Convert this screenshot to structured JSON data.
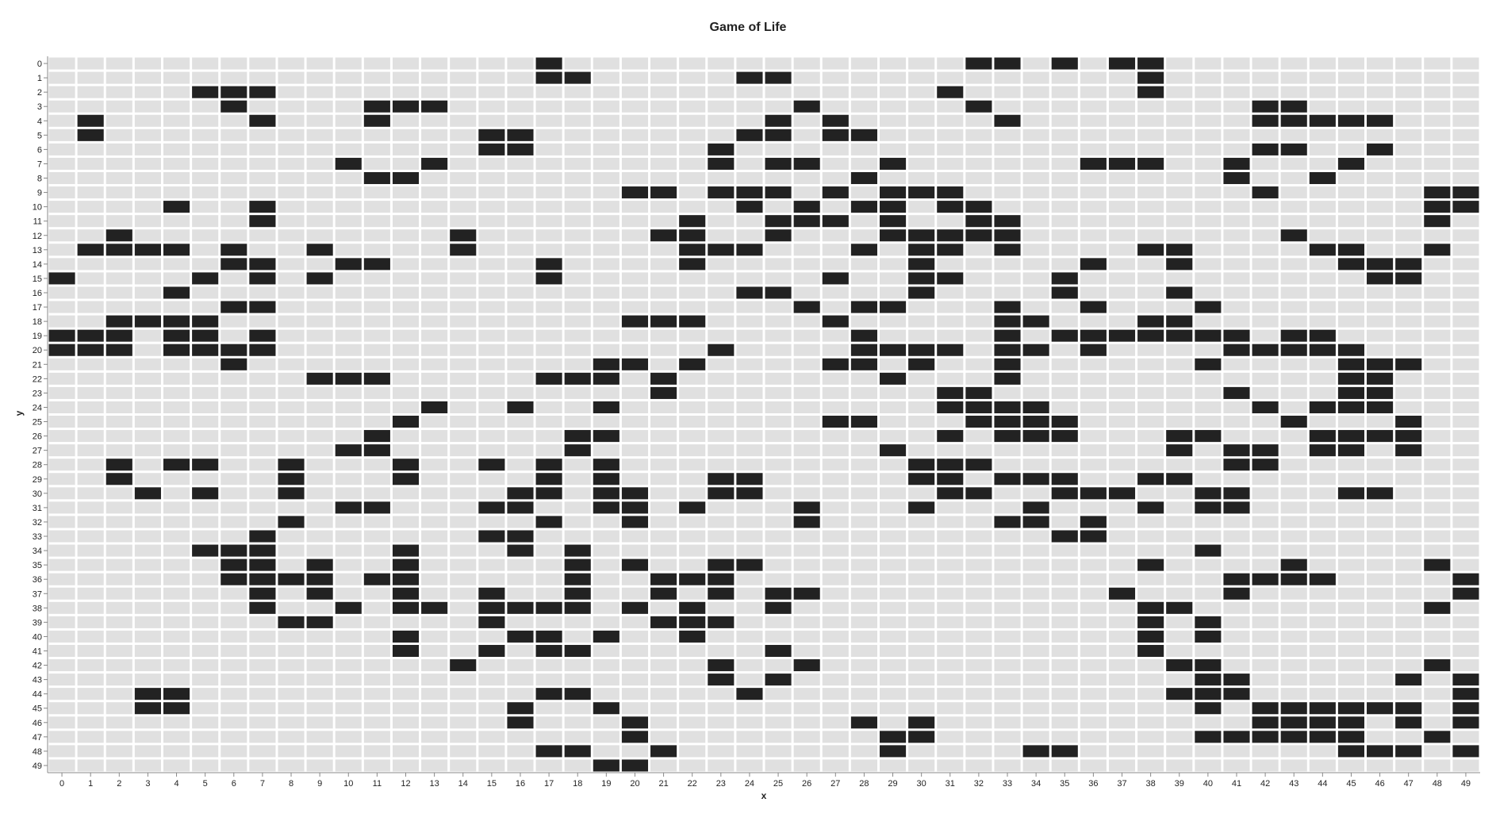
{
  "chart_data": {
    "type": "heatmap",
    "title": "Game of Life",
    "xlabel": "x",
    "ylabel": "y",
    "x_categories": [
      0,
      1,
      2,
      3,
      4,
      5,
      6,
      7,
      8,
      9,
      10,
      11,
      12,
      13,
      14,
      15,
      16,
      17,
      18,
      19,
      20,
      21,
      22,
      23,
      24,
      25,
      26,
      27,
      28,
      29,
      30,
      31,
      32,
      33,
      34,
      35,
      36,
      37,
      38,
      39,
      40,
      41,
      42,
      43,
      44,
      45,
      46,
      47,
      48,
      49
    ],
    "y_categories": [
      0,
      1,
      2,
      3,
      4,
      5,
      6,
      7,
      8,
      9,
      10,
      11,
      12,
      13,
      14,
      15,
      16,
      17,
      18,
      19,
      20,
      21,
      22,
      23,
      24,
      25,
      26,
      27,
      28,
      29,
      30,
      31,
      32,
      33,
      34,
      35,
      36,
      37,
      38,
      39,
      40,
      41,
      42,
      43,
      44,
      45,
      46,
      47,
      48,
      49
    ],
    "colors": {
      "alive": "#222222",
      "dead": "#e0e0e0"
    },
    "grid": false,
    "legend": "none",
    "alive_cells": {
      "0": [
        17,
        32,
        33,
        35,
        37,
        38
      ],
      "1": [
        17,
        18,
        24,
        25,
        38
      ],
      "2": [
        5,
        6,
        7,
        31,
        38
      ],
      "3": [
        6,
        11,
        12,
        13,
        26,
        32,
        42,
        43
      ],
      "4": [
        1,
        7,
        11,
        25,
        27,
        33,
        42,
        43,
        44,
        45,
        46
      ],
      "5": [
        1,
        15,
        16,
        24,
        25,
        27,
        28
      ],
      "6": [
        15,
        16,
        23,
        42,
        43,
        46
      ],
      "7": [
        10,
        13,
        23,
        25,
        26,
        29,
        36,
        37,
        38,
        41,
        45
      ],
      "8": [
        11,
        12,
        28,
        41,
        44
      ],
      "9": [
        20,
        21,
        23,
        24,
        25,
        27,
        29,
        30,
        31,
        42,
        48,
        49
      ],
      "10": [
        4,
        7,
        24,
        26,
        28,
        29,
        31,
        32,
        48,
        49
      ],
      "11": [
        7,
        22,
        25,
        26,
        27,
        29,
        32,
        33,
        48
      ],
      "12": [
        2,
        14,
        21,
        22,
        25,
        29,
        30,
        31,
        32,
        33,
        43
      ],
      "13": [
        1,
        2,
        3,
        4,
        6,
        9,
        14,
        22,
        23,
        24,
        28,
        30,
        31,
        33,
        38,
        39,
        44,
        45,
        48
      ],
      "14": [
        6,
        7,
        10,
        11,
        17,
        22,
        30,
        36,
        39,
        45,
        46,
        47
      ],
      "15": [
        0,
        5,
        7,
        9,
        17,
        27,
        30,
        31,
        35,
        46,
        47
      ],
      "16": [
        4,
        24,
        25,
        30,
        35,
        39
      ],
      "17": [
        6,
        7,
        26,
        28,
        29,
        33,
        36,
        40
      ],
      "18": [
        2,
        3,
        4,
        5,
        20,
        21,
        22,
        27,
        33,
        34,
        38,
        39
      ],
      "19": [
        0,
        1,
        2,
        4,
        5,
        7,
        28,
        33,
        35,
        36,
        37,
        38,
        39,
        40,
        41,
        43,
        44
      ],
      "20": [
        0,
        1,
        2,
        4,
        5,
        6,
        7,
        23,
        28,
        29,
        30,
        31,
        33,
        34,
        36,
        41,
        42,
        43,
        44,
        45
      ],
      "21": [
        6,
        19,
        20,
        22,
        27,
        28,
        30,
        33,
        40,
        45,
        46,
        47
      ],
      "22": [
        9,
        10,
        11,
        17,
        18,
        19,
        21,
        29,
        33,
        45,
        46
      ],
      "23": [
        21,
        31,
        32,
        41,
        45,
        46
      ],
      "24": [
        13,
        16,
        19,
        31,
        32,
        33,
        34,
        42,
        44,
        45,
        46
      ],
      "25": [
        12,
        27,
        28,
        32,
        33,
        34,
        35,
        43,
        47
      ],
      "26": [
        11,
        18,
        19,
        31,
        33,
        34,
        35,
        39,
        40,
        44,
        45,
        46,
        47
      ],
      "27": [
        10,
        11,
        18,
        29,
        39,
        41,
        42,
        44,
        45,
        47
      ],
      "28": [
        2,
        4,
        5,
        8,
        12,
        15,
        17,
        19,
        30,
        31,
        32,
        41,
        42
      ],
      "29": [
        2,
        8,
        12,
        17,
        19,
        23,
        24,
        30,
        31,
        33,
        34,
        35,
        38,
        39
      ],
      "30": [
        3,
        5,
        8,
        16,
        17,
        19,
        20,
        23,
        24,
        31,
        32,
        35,
        36,
        37,
        40,
        41,
        45,
        46
      ],
      "31": [
        10,
        11,
        15,
        16,
        19,
        20,
        22,
        26,
        30,
        34,
        38,
        40,
        41
      ],
      "32": [
        8,
        17,
        20,
        26,
        33,
        34,
        36
      ],
      "33": [
        7,
        15,
        16,
        35,
        36
      ],
      "34": [
        5,
        6,
        7,
        12,
        16,
        18,
        40
      ],
      "35": [
        6,
        7,
        9,
        12,
        18,
        20,
        23,
        24,
        38,
        43,
        48
      ],
      "36": [
        6,
        7,
        8,
        9,
        11,
        12,
        18,
        21,
        22,
        23,
        41,
        42,
        43,
        44,
        49
      ],
      "37": [
        7,
        9,
        12,
        15,
        18,
        21,
        23,
        25,
        26,
        37,
        41,
        49
      ],
      "38": [
        7,
        10,
        12,
        13,
        15,
        16,
        17,
        18,
        20,
        22,
        25,
        38,
        39,
        48
      ],
      "39": [
        8,
        9,
        15,
        21,
        22,
        23,
        38,
        40
      ],
      "40": [
        12,
        16,
        17,
        19,
        22,
        38,
        40
      ],
      "41": [
        12,
        15,
        17,
        18,
        25,
        38
      ],
      "42": [
        14,
        23,
        26,
        39,
        40,
        48
      ],
      "43": [
        23,
        25,
        40,
        41,
        47,
        49
      ],
      "44": [
        3,
        4,
        17,
        18,
        24,
        39,
        40,
        41,
        49
      ],
      "45": [
        3,
        4,
        16,
        19,
        40,
        42,
        43,
        44,
        45,
        46,
        47,
        49
      ],
      "46": [
        16,
        20,
        28,
        30,
        42,
        43,
        44,
        45,
        47,
        49
      ],
      "47": [
        20,
        29,
        30,
        40,
        41,
        42,
        43,
        44,
        45,
        48
      ],
      "48": [
        17,
        18,
        21,
        29,
        34,
        35,
        45,
        46,
        47,
        49
      ],
      "49": [
        19,
        20
      ]
    }
  }
}
